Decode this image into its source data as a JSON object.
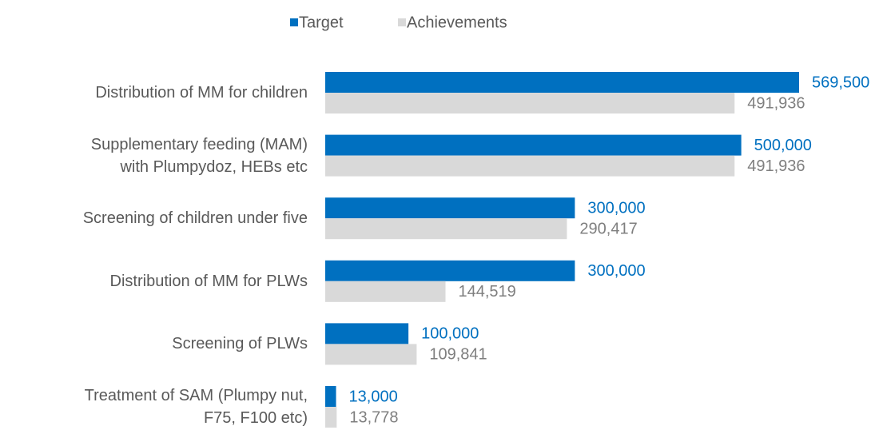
{
  "chart_data": {
    "type": "bar",
    "orientation": "horizontal",
    "categories": [
      "Distribution of MM for children",
      "Supplementary feeding (MAM)\nwith Plumpydoz, HEBs etc",
      "Screening of children under five",
      "Distribution of MM for PLWs",
      "Screening of PLWs",
      "Treatment of SAM (Plumpy nut,\nF75, F100 etc)"
    ],
    "series": [
      {
        "name": "Target",
        "color": "#0070c0",
        "values": [
          569500,
          500000,
          300000,
          300000,
          100000,
          13000
        ],
        "value_labels": [
          "569,500",
          "500,000",
          "300,000",
          "300,000",
          "100,000",
          "13,000"
        ]
      },
      {
        "name": "Achievements",
        "color": "#d9d9d9",
        "label_color": "#7f7f7f",
        "values": [
          491936,
          491936,
          290417,
          144519,
          109841,
          13778
        ],
        "value_labels": [
          "491,936",
          "491,936",
          "290,417",
          "144,519",
          "109,841",
          "13,778"
        ]
      }
    ],
    "legend": "top"
  }
}
